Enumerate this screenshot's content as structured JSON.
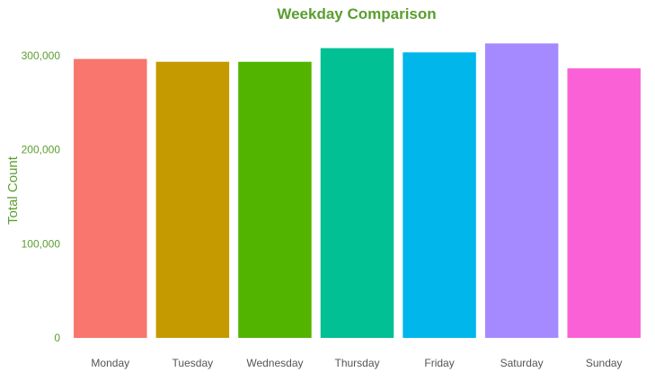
{
  "chart_data": {
    "type": "bar",
    "title": "Weekday Comparison",
    "xlabel": "",
    "ylabel": "Total Count",
    "categories": [
      "Monday",
      "Tuesday",
      "Wednesday",
      "Thursday",
      "Friday",
      "Saturday",
      "Sunday"
    ],
    "values": [
      296500,
      293500,
      293500,
      308000,
      303500,
      313000,
      286500
    ],
    "ylim": [
      0,
      320000
    ],
    "yticks": [
      0,
      100000,
      200000,
      300000
    ],
    "ytick_labels": [
      "0",
      "100,000",
      "200,000",
      "300,000"
    ],
    "colors": [
      "#F8766D",
      "#C49A00",
      "#53B400",
      "#00C094",
      "#00B6EB",
      "#A58AFF",
      "#FB61D7"
    ],
    "grid": false,
    "legend": "none",
    "title_color": "#5a9e2f",
    "axis_text_color": "#5a9e2f",
    "category_text_color": "#555555"
  }
}
